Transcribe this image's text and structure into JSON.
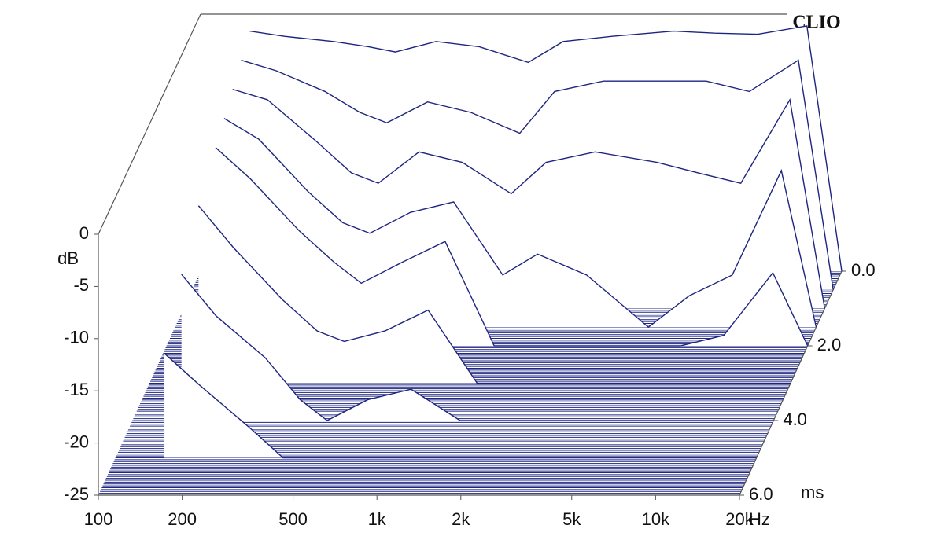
{
  "chart_data": {
    "type": "waterfall",
    "brand": "CLIO",
    "x_label": "Hz",
    "y_label": "dB",
    "z_label": "ms",
    "color": "#1e2580",
    "log_x": true,
    "x": [
      150,
      200,
      300,
      400,
      500,
      700,
      1000,
      1500,
      2000,
      3000,
      5000,
      7000,
      10000,
      15000,
      20000
    ],
    "xlim": [
      100,
      20000
    ],
    "xticks": [
      100,
      200,
      500,
      {
        "value": 1000,
        "label": "1k"
      },
      {
        "value": 2000,
        "label": "2k"
      },
      {
        "value": 5000,
        "label": "5k"
      },
      {
        "value": 10000,
        "label": "10k"
      },
      {
        "value": 20000,
        "label": "20k"
      }
    ],
    "ylim": [
      -25,
      0
    ],
    "yticks": [
      0,
      -5,
      -10,
      -15,
      -20,
      -25
    ],
    "zlim": [
      0,
      6
    ],
    "zticks": [
      {
        "value": 0,
        "label": "0.0"
      },
      {
        "value": 2,
        "label": "2.0"
      },
      {
        "value": 4,
        "label": "4.0"
      },
      {
        "value": 6,
        "label": "6.0"
      }
    ],
    "series": [
      {
        "time": 0,
        "values": [
          -2,
          -2.5,
          -3,
          -3.5,
          -4,
          -3,
          -3.5,
          -5,
          -3,
          -2.5,
          -2,
          -2.2,
          -2.3,
          -1.5,
          -25
        ]
      },
      {
        "time": 0.5,
        "values": [
          -3,
          -4,
          -6,
          -8,
          -9,
          -7,
          -8,
          -10,
          -6,
          -5,
          -5,
          -5,
          -6,
          -3,
          -25
        ]
      },
      {
        "time": 1,
        "values": [
          -4,
          -5,
          -9,
          -12,
          -13,
          -10,
          -11,
          -14,
          -11,
          -10,
          -11,
          -12,
          -13,
          -5,
          -25
        ]
      },
      {
        "time": 1.5,
        "values": [
          -5,
          -7,
          -12,
          -15,
          -16,
          -14,
          -13,
          -20,
          -18,
          -20,
          -25,
          -22,
          -20,
          -10,
          -25
        ]
      },
      {
        "time": 2,
        "values": [
          -6,
          -9,
          -14,
          -17,
          -19,
          -17,
          -15,
          -25,
          -25,
          -25,
          -25,
          -25,
          -24,
          -18,
          -25
        ]
      },
      {
        "time": 3,
        "values": [
          -8,
          -12,
          -17,
          -20,
          -21,
          -20,
          -18,
          -25,
          -25,
          -25,
          -25,
          -25,
          -25,
          -25,
          -25
        ]
      },
      {
        "time": 4,
        "values": [
          -11,
          -15,
          -19,
          -23,
          -25,
          -23,
          -22,
          -25,
          -25,
          -25,
          -25,
          -25,
          -25,
          -25,
          -25
        ]
      },
      {
        "time": 5,
        "values": [
          -15,
          -18,
          -22,
          -25,
          -25,
          -25,
          -25,
          -25,
          -25,
          -25,
          -25,
          -25,
          -25,
          -25,
          -25
        ]
      }
    ]
  }
}
